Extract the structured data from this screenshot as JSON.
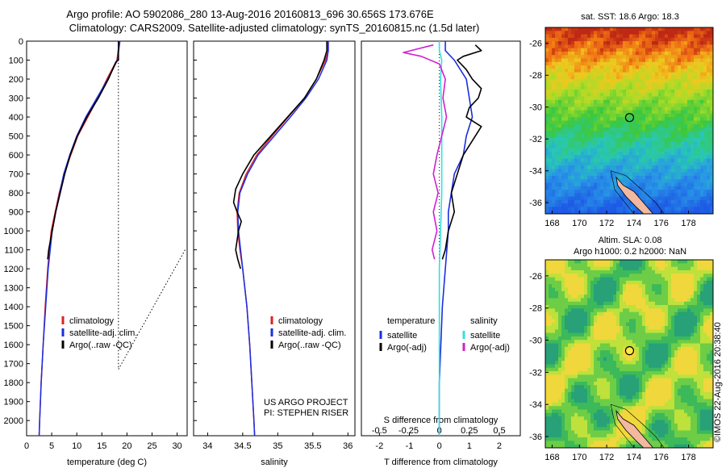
{
  "title_line1": "Argo profile: AO 5902086_280 13-Aug-2016 20160813_696 30.656S 173.676E",
  "title_line2": "Climatology: CARS2009. Satellite-adjusted climatology: synTS_20160815.nc (1.5d later)",
  "sst_title": "sat. SST: 18.6 Argo: 18.3",
  "sla_title_1": "Altim. SLA: 0.08",
  "sla_title_2": "Argo h1000: 0.2 h2000: NaN",
  "side_stamp": "©IMOS 22-Aug-2016 20:38:40",
  "project_line1": "US ARGO PROJECT",
  "project_line2": "PI: STEPHEN RISER",
  "colors": {
    "climatology": "#e02020",
    "satellite": "#1a2ee0",
    "argo": "#000000",
    "sat_sal": "#30e0e0",
    "argo_sal": "#d020d0"
  },
  "chart_data": [
    {
      "type": "line",
      "xlabel": "temperature (deg C)",
      "ylabel": "",
      "xlim": [
        0,
        32
      ],
      "ylim": [
        2080,
        0
      ],
      "xticks": [
        0,
        5,
        10,
        15,
        20,
        25,
        30
      ],
      "yticks": [
        0,
        100,
        200,
        300,
        400,
        500,
        600,
        700,
        800,
        900,
        1000,
        1100,
        1200,
        1300,
        1400,
        1500,
        1600,
        1700,
        1800,
        1900,
        2000
      ],
      "legend": [
        "climatology",
        "satellite-adj. clim.",
        "Argo(..raw -QC)"
      ],
      "series": [
        {
          "name": "climatology",
          "depth": [
            0,
            100,
            200,
            300,
            400,
            500,
            600,
            700,
            800,
            900,
            1000,
            1200,
            1400,
            1600,
            1800,
            2000,
            2080
          ],
          "values": [
            18.5,
            18.0,
            16.0,
            14.2,
            12.2,
            10.2,
            8.8,
            7.5,
            6.5,
            5.7,
            4.9,
            4.2,
            3.7,
            3.3,
            2.9,
            2.6,
            2.5
          ]
        },
        {
          "name": "satellite-adj. clim.",
          "depth": [
            0,
            100,
            200,
            300,
            400,
            500,
            600,
            700,
            800,
            900,
            1000,
            1200,
            1400,
            1600,
            1800,
            2000,
            2080
          ],
          "values": [
            18.6,
            18.1,
            16.2,
            14.0,
            11.8,
            10.0,
            8.6,
            7.4,
            6.6,
            5.8,
            5.1,
            4.3,
            3.8,
            3.3,
            2.9,
            2.6,
            2.5
          ]
        },
        {
          "name": "Argo(..raw -QC)",
          "depth": [
            0,
            100,
            110,
            200,
            300,
            400,
            500,
            600,
            700,
            800,
            900,
            1000,
            1100,
            1150
          ],
          "values": [
            18.3,
            18.3,
            17.8,
            16.3,
            14.3,
            12.0,
            10.1,
            8.7,
            7.6,
            6.7,
            5.8,
            5.1,
            4.4,
            4.2
          ]
        }
      ]
    },
    {
      "type": "line",
      "xlabel": "salinity",
      "xlim": [
        33.8,
        36.1
      ],
      "ylim": [
        2080,
        0
      ],
      "xticks": [
        34,
        34.5,
        35,
        35.5,
        36
      ],
      "xticklabels": [
        "34",
        "34.5",
        "35",
        "35.5",
        "36"
      ],
      "legend": [
        "climatology",
        "satellite-adj. clim.",
        "Argo(..raw -QC)"
      ],
      "series": [
        {
          "name": "climatology",
          "depth": [
            0,
            50,
            100,
            200,
            300,
            400,
            500,
            600,
            700,
            800,
            900,
            1000,
            1100,
            1200,
            1400,
            1600,
            1800,
            2000,
            2080
          ],
          "values": [
            35.72,
            35.72,
            35.68,
            35.55,
            35.38,
            35.15,
            34.92,
            34.7,
            34.55,
            34.45,
            34.42,
            34.43,
            34.46,
            34.5,
            34.56,
            34.6,
            34.63,
            34.66,
            34.67
          ]
        },
        {
          "name": "satellite-adj. clim.",
          "depth": [
            0,
            50,
            100,
            200,
            300,
            400,
            500,
            600,
            700,
            800,
            900,
            1000,
            1100,
            1200,
            1400,
            1600,
            1800,
            2000,
            2080
          ],
          "values": [
            35.72,
            35.72,
            35.7,
            35.58,
            35.4,
            35.18,
            34.95,
            34.72,
            34.57,
            34.46,
            34.43,
            34.44,
            34.47,
            34.5,
            34.56,
            34.6,
            34.63,
            34.66,
            34.67
          ]
        },
        {
          "name": "Argo(..raw -QC)",
          "depth": [
            0,
            50,
            100,
            200,
            300,
            400,
            500,
            600,
            700,
            780,
            850,
            900,
            950,
            1000,
            1050,
            1100,
            1150,
            1200
          ],
          "values": [
            35.7,
            35.7,
            35.66,
            35.55,
            35.38,
            35.14,
            34.9,
            34.66,
            34.5,
            34.4,
            34.37,
            34.42,
            34.48,
            34.44,
            34.42,
            34.4,
            34.43,
            34.47
          ]
        }
      ]
    },
    {
      "type": "line",
      "xlabel": "T difference from climatology",
      "xlabel2": "S difference from climatology",
      "xlim": [
        -2.6,
        2.7
      ],
      "ylim": [
        2080,
        0
      ],
      "xticks": [
        -2,
        -1,
        0,
        1,
        2
      ],
      "xticklabels2": [
        "-0.5",
        "-0.25",
        "0",
        "0.25",
        "0.5"
      ],
      "legend_left_title": "temperature",
      "legend_right_title": "salinity",
      "legend": [
        "satellite",
        "Argo(-adj)",
        "satellite",
        "Argo(-adj)"
      ],
      "series": [
        {
          "name": "satellite",
          "depth": [
            0,
            50,
            100,
            200,
            300,
            400,
            500,
            600,
            700,
            800,
            900,
            1000,
            1200,
            1400,
            1600,
            1800,
            2000,
            2080
          ],
          "values": [
            0.2,
            0.2,
            0.5,
            0.9,
            1.0,
            1.1,
            0.9,
            0.8,
            0.5,
            0.4,
            0.3,
            0.3,
            0.2,
            0.1,
            0.05,
            0.0,
            0.0,
            0.0
          ]
        },
        {
          "name": "Argo(-adj)",
          "depth": [
            20,
            50,
            80,
            100,
            150,
            200,
            250,
            300,
            350,
            400,
            450,
            500,
            600,
            700,
            800,
            900,
            1000,
            1100,
            1150
          ],
          "values": [
            1.2,
            1.4,
            0.8,
            0.6,
            0.9,
            1.1,
            1.4,
            1.3,
            1.0,
            0.9,
            1.4,
            1.2,
            0.8,
            0.6,
            0.4,
            0.5,
            0.3,
            0.2,
            0.1
          ]
        },
        {
          "name": "satellite",
          "depth": [
            0,
            50,
            100,
            200,
            400,
            600,
            800,
            1000,
            1200,
            1400,
            1600,
            1800,
            2000,
            2080
          ],
          "values": [
            0.0,
            0.0,
            0.02,
            0.01,
            0.02,
            0.02,
            0.02,
            0.01,
            0.0,
            0.0,
            0.0,
            0.0,
            0.0,
            0.0
          ]
        },
        {
          "name": "Argo(-adj)",
          "depth": [
            20,
            60,
            80,
            120,
            200,
            300,
            400,
            500,
            600,
            700,
            800,
            900,
            1000,
            1100,
            1150
          ],
          "values": [
            -0.05,
            -0.3,
            -0.15,
            0.0,
            0.05,
            0.03,
            0.06,
            0.02,
            -0.02,
            -0.05,
            -0.01,
            -0.05,
            -0.02,
            -0.06,
            -0.04
          ]
        }
      ]
    },
    {
      "type": "heatmap",
      "title": "sat. SST: 18.6 Argo: 18.3",
      "xticks": [
        168,
        170,
        172,
        174,
        176,
        178
      ],
      "yticks": [
        -26,
        -28,
        -30,
        -32,
        -34,
        -36
      ],
      "float_position": {
        "lon": 173.676,
        "lat": -30.656
      }
    },
    {
      "type": "heatmap",
      "title": "Altim. SLA: 0.08",
      "xticks": [
        168,
        170,
        172,
        174,
        176,
        178
      ],
      "yticks": [
        -26,
        -28,
        -30,
        -32,
        -34,
        -36
      ],
      "float_position": {
        "lon": 173.676,
        "lat": -30.656
      }
    }
  ]
}
